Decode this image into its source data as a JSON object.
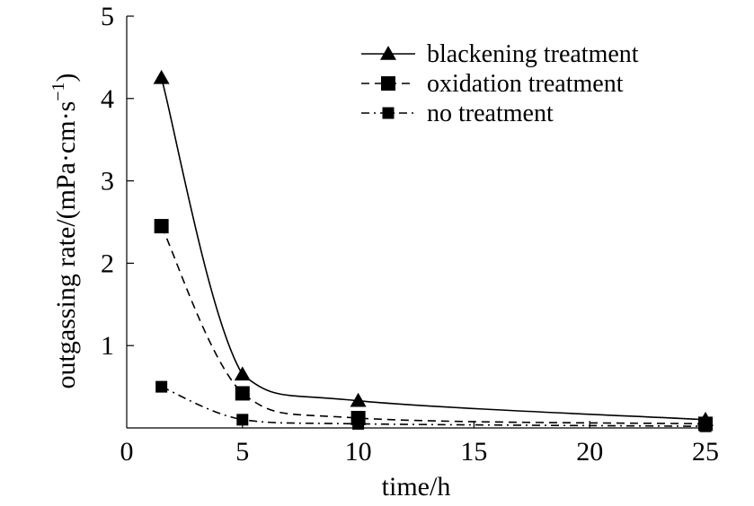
{
  "chart_data": {
    "type": "line",
    "title": "",
    "xlabel": "time/h",
    "ylabel": {
      "main": "outgassing rate/(mPa·cm·s",
      "sup": "−1",
      "close": ")"
    },
    "xlim": [
      0,
      25
    ],
    "ylim": [
      0,
      5
    ],
    "x_ticks": [
      "0",
      "5",
      "10",
      "15",
      "20",
      "25"
    ],
    "y_ticks": [
      "1",
      "2",
      "3",
      "4",
      "5"
    ],
    "grid": false,
    "legend_position": "top-right",
    "series": [
      {
        "name": "blackening treatment",
        "marker": "triangle",
        "dash": "solid",
        "x": [
          1.5,
          5,
          10,
          25
        ],
        "y": [
          4.25,
          0.65,
          0.33,
          0.1
        ]
      },
      {
        "name": "oxidation treatment",
        "marker": "square",
        "dash": "dashed",
        "x": [
          1.5,
          5,
          10,
          25
        ],
        "y": [
          2.45,
          0.42,
          0.12,
          0.05
        ]
      },
      {
        "name": "no treatment",
        "marker": "square-small",
        "dash": "dashdot",
        "x": [
          1.5,
          5,
          10,
          25
        ],
        "y": [
          0.5,
          0.1,
          0.05,
          0.02
        ]
      }
    ]
  }
}
